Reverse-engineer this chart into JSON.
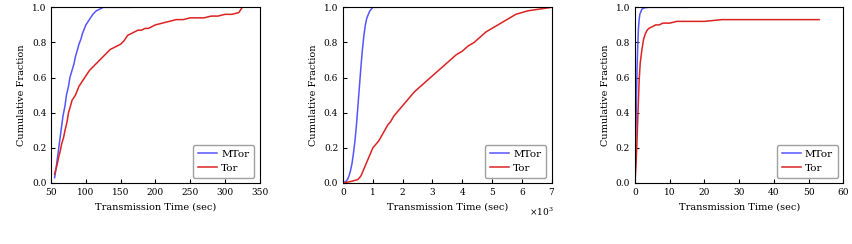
{
  "fig_width": 8.52,
  "fig_height": 2.44,
  "dpi": 100,
  "fig_facecolor": "#ffffff",
  "ax_facecolor": "#ffffff",
  "subplot_a": {
    "xlabel": "Transmission Time (sec)",
    "ylabel": "Cumulative Fraction",
    "xlim": [
      50,
      350
    ],
    "ylim": [
      0.0,
      1.0
    ],
    "xticks": [
      50,
      100,
      150,
      200,
      250,
      300,
      350
    ],
    "yticks": [
      0.0,
      0.2,
      0.4,
      0.6,
      0.8,
      1.0
    ],
    "mtor_color": "#5555ff",
    "tor_color": "#dd2222",
    "mtor_x": [
      55,
      57,
      59,
      61,
      63,
      65,
      67,
      70,
      72,
      75,
      77,
      80,
      83,
      85,
      88,
      90,
      93,
      95,
      100,
      105,
      110,
      115,
      120,
      125,
      130,
      135,
      140,
      145,
      150,
      160,
      165
    ],
    "mtor_y": [
      0.03,
      0.08,
      0.14,
      0.2,
      0.26,
      0.32,
      0.38,
      0.44,
      0.5,
      0.55,
      0.6,
      0.64,
      0.68,
      0.72,
      0.76,
      0.79,
      0.82,
      0.85,
      0.9,
      0.93,
      0.96,
      0.98,
      0.99,
      1.0,
      1.0,
      1.0,
      1.0,
      1.0,
      1.0,
      1.0,
      1.0
    ],
    "tor_x": [
      55,
      57,
      59,
      61,
      63,
      65,
      68,
      70,
      73,
      75,
      78,
      80,
      85,
      90,
      95,
      100,
      105,
      110,
      115,
      120,
      125,
      130,
      135,
      140,
      150,
      155,
      160,
      165,
      170,
      175,
      180,
      185,
      190,
      195,
      200,
      210,
      220,
      230,
      240,
      250,
      260,
      270,
      280,
      290,
      300,
      310,
      320,
      325
    ],
    "tor_y": [
      0.05,
      0.08,
      0.11,
      0.15,
      0.18,
      0.22,
      0.26,
      0.3,
      0.35,
      0.4,
      0.44,
      0.47,
      0.5,
      0.55,
      0.58,
      0.61,
      0.64,
      0.66,
      0.68,
      0.7,
      0.72,
      0.74,
      0.76,
      0.77,
      0.79,
      0.81,
      0.84,
      0.85,
      0.86,
      0.87,
      0.87,
      0.88,
      0.88,
      0.89,
      0.9,
      0.91,
      0.92,
      0.93,
      0.93,
      0.94,
      0.94,
      0.94,
      0.95,
      0.95,
      0.96,
      0.96,
      0.97,
      1.0
    ]
  },
  "subplot_b": {
    "xlabel": "Transmission Time (sec)",
    "ylabel": "Cumulative Fraction",
    "xlim": [
      0,
      7000
    ],
    "ylim": [
      0.0,
      1.0
    ],
    "xticks": [
      0,
      1000,
      2000,
      3000,
      4000,
      5000,
      6000,
      7000
    ],
    "xticklabels": [
      "0",
      "1",
      "2",
      "3",
      "4",
      "5",
      "6",
      "7"
    ],
    "yticks": [
      0.0,
      0.2,
      0.4,
      0.6,
      0.8,
      1.0
    ],
    "mtor_color": "#5555ff",
    "tor_color": "#dd2222",
    "mtor_x": [
      0,
      50,
      100,
      150,
      200,
      250,
      300,
      350,
      400,
      450,
      500,
      550,
      600,
      650,
      700,
      750,
      800,
      850,
      900,
      950,
      1000,
      1050,
      1100,
      1150,
      1200
    ],
    "mtor_y": [
      0.0,
      0.005,
      0.01,
      0.02,
      0.04,
      0.07,
      0.11,
      0.17,
      0.24,
      0.33,
      0.44,
      0.55,
      0.66,
      0.76,
      0.84,
      0.9,
      0.94,
      0.96,
      0.98,
      0.99,
      1.0,
      1.0,
      1.0,
      1.0,
      1.0
    ],
    "tor_x": [
      0,
      300,
      500,
      600,
      700,
      750,
      800,
      850,
      900,
      950,
      1000,
      1100,
      1200,
      1300,
      1400,
      1500,
      1600,
      1700,
      1800,
      1900,
      2000,
      2100,
      2200,
      2400,
      2600,
      2800,
      3000,
      3200,
      3400,
      3600,
      3800,
      4000,
      4200,
      4400,
      4600,
      4800,
      5000,
      5200,
      5400,
      5600,
      5800,
      6000,
      6200,
      6400,
      6600,
      6800,
      7000
    ],
    "tor_y": [
      0.0,
      0.01,
      0.02,
      0.04,
      0.08,
      0.1,
      0.12,
      0.14,
      0.16,
      0.18,
      0.2,
      0.22,
      0.24,
      0.27,
      0.3,
      0.33,
      0.35,
      0.38,
      0.4,
      0.42,
      0.44,
      0.46,
      0.48,
      0.52,
      0.55,
      0.58,
      0.61,
      0.64,
      0.67,
      0.7,
      0.73,
      0.75,
      0.78,
      0.8,
      0.83,
      0.86,
      0.88,
      0.9,
      0.92,
      0.94,
      0.96,
      0.97,
      0.98,
      0.985,
      0.99,
      0.995,
      1.0
    ]
  },
  "subplot_c": {
    "xlabel": "Transmission Time (sec)",
    "ylabel": "Cumulative Fraction",
    "xlim": [
      0,
      60
    ],
    "ylim": [
      0.0,
      1.0
    ],
    "xticks": [
      0,
      10,
      20,
      30,
      40,
      50,
      60
    ],
    "yticks": [
      0.0,
      0.2,
      0.4,
      0.6,
      0.8,
      1.0
    ],
    "mtor_color": "#5555ff",
    "tor_color": "#dd2222",
    "mtor_x": [
      0,
      0.2,
      0.4,
      0.6,
      0.8,
      1.0,
      1.2,
      1.4,
      1.6,
      1.8,
      2.0,
      2.5,
      3.0,
      4.0,
      5.0,
      8.0,
      15.0
    ],
    "mtor_y": [
      0.0,
      0.2,
      0.45,
      0.65,
      0.78,
      0.88,
      0.93,
      0.96,
      0.97,
      0.98,
      0.99,
      0.995,
      0.998,
      1.0,
      1.0,
      1.0,
      1.0
    ],
    "tor_x": [
      0,
      0.3,
      0.6,
      0.9,
      1.2,
      1.5,
      2.0,
      2.5,
      3.0,
      3.5,
      4.0,
      5.0,
      6.0,
      7.0,
      8.0,
      9.0,
      10.0,
      12.0,
      15.0,
      20.0,
      25.0,
      30.0,
      35.0,
      40.0,
      45.0,
      50.0,
      53.0
    ],
    "tor_y": [
      0.0,
      0.1,
      0.25,
      0.42,
      0.58,
      0.68,
      0.76,
      0.82,
      0.85,
      0.87,
      0.88,
      0.89,
      0.9,
      0.9,
      0.91,
      0.91,
      0.91,
      0.92,
      0.92,
      0.92,
      0.93,
      0.93,
      0.93,
      0.93,
      0.93,
      0.93,
      0.93
    ]
  },
  "legend_mtor": "MTor",
  "legend_tor": "Tor",
  "legend_fontsize": 7.5,
  "axis_label_fontsize": 7,
  "tick_fontsize": 6.5,
  "subfig_label_fontsize": 11,
  "line_width": 1.1
}
